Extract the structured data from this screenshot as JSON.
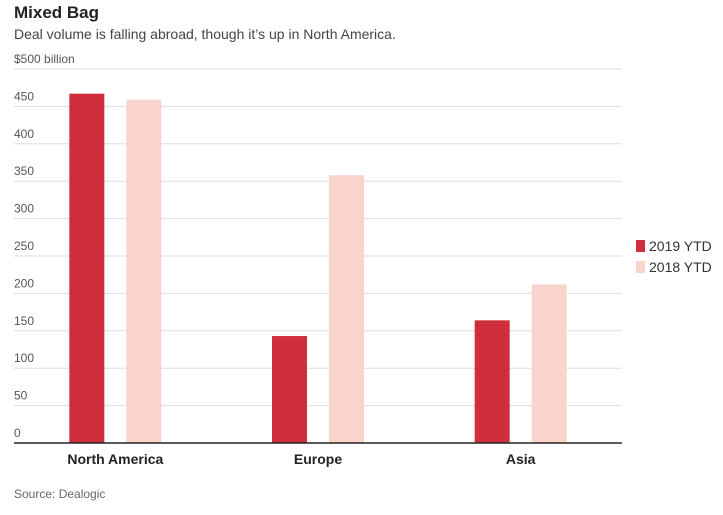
{
  "title": "Mixed Bag",
  "subtitle": "Deal volume is falling abroad, though it’s up in North America.",
  "source": "Source: Dealogic",
  "chart_data": {
    "type": "bar",
    "title": "Mixed Bag",
    "subtitle": "Deal volume is falling abroad, though it’s up in North America.",
    "xlabel": "",
    "ylabel": "",
    "unit_label": "$500 billion",
    "categories": [
      "North America",
      "Europe",
      "Asia"
    ],
    "series": [
      {
        "name": "2019 YTD",
        "values": [
          467,
          143,
          164
        ],
        "color": "#cf2f3d"
      },
      {
        "name": "2018 YTD",
        "values": [
          459,
          358,
          212
        ],
        "color": "#f9d4cc"
      }
    ],
    "ylim": [
      0,
      500
    ],
    "yticks": [
      0,
      50,
      100,
      150,
      200,
      250,
      300,
      350,
      400,
      450,
      500
    ],
    "ytick_labels": [
      "0",
      "50",
      "100",
      "150",
      "200",
      "250",
      "300",
      "350",
      "400",
      "450",
      "$500 billion"
    ],
    "grid": true,
    "legend_position": "right"
  }
}
